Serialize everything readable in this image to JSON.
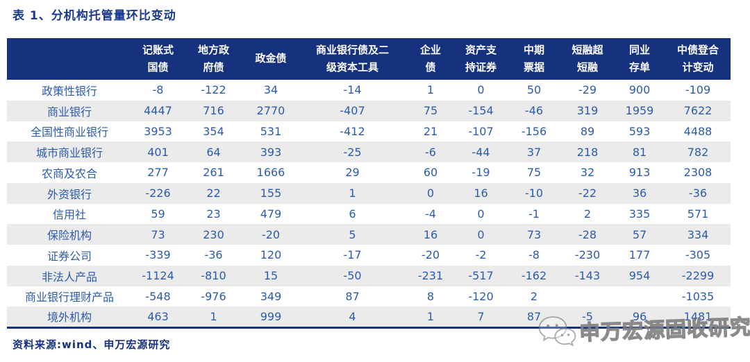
{
  "title": "表 1、分机构托管量环比变动",
  "source": "资料来源:wind、申万宏源研究",
  "watermark": {
    "icon": "wechat-icon",
    "text": "申万宏源固收研究"
  },
  "colors": {
    "header_bg": "#16317D",
    "title_text": "#1A3A8F",
    "cell_text": "#2B5BAD",
    "alt_row_bg": "#EBEBEB",
    "table_bottom_border": "#16317D"
  },
  "table": {
    "columns": [
      {
        "line1": "记账式",
        "line2": "国债"
      },
      {
        "line1": "地方政",
        "line2": "府债"
      },
      {
        "line1": "政金债",
        "line2": ""
      },
      {
        "line1": "商业银行债及二",
        "line2": "级资本工具"
      },
      {
        "line1": "企业",
        "line2": "债"
      },
      {
        "line1": "资产支",
        "line2": "持证券"
      },
      {
        "line1": "中期",
        "line2": "票据"
      },
      {
        "line1": "短融超",
        "line2": "短融"
      },
      {
        "line1": "同业",
        "line2": "存单"
      },
      {
        "line1": "中债登合",
        "line2": "计变动"
      }
    ],
    "rows": [
      {
        "label": "政策性银行",
        "values": [
          "-8",
          "-122",
          "34",
          "-14",
          "1",
          "0",
          "50",
          "-29",
          "900",
          "-109"
        ]
      },
      {
        "label": "商业银行",
        "values": [
          "4447",
          "716",
          "2770",
          "-407",
          "75",
          "-154",
          "-46",
          "319",
          "1959",
          "7622"
        ]
      },
      {
        "label": "全国性商业银行",
        "values": [
          "3953",
          "354",
          "531",
          "-412",
          "21",
          "-107",
          "-156",
          "89",
          "593",
          "4488"
        ]
      },
      {
        "label": "城市商业银行",
        "values": [
          "401",
          "64",
          "393",
          "-25",
          "-6",
          "-44",
          "37",
          "218",
          "81",
          "782"
        ]
      },
      {
        "label": "农商及农合",
        "values": [
          "277",
          "261",
          "1666",
          "29",
          "60",
          "-19",
          "75",
          "32",
          "913",
          "2308"
        ]
      },
      {
        "label": "外资银行",
        "values": [
          "-226",
          "22",
          "155",
          "1",
          "0",
          "16",
          "-10",
          "-22",
          "36",
          "-36"
        ]
      },
      {
        "label": "信用社",
        "values": [
          "59",
          "23",
          "479",
          "6",
          "-4",
          "0",
          "-1",
          "2",
          "335",
          "571"
        ]
      },
      {
        "label": "保险机构",
        "values": [
          "73",
          "230",
          "-20",
          "5",
          "16",
          "0",
          "73",
          "-28",
          "57",
          "334"
        ]
      },
      {
        "label": "证券公司",
        "values": [
          "-339",
          "-36",
          "120",
          "-17",
          "-20",
          "-2",
          "-8",
          "-230",
          "177",
          "-305"
        ]
      },
      {
        "label": "非法人产品",
        "values": [
          "-1124",
          "-810",
          "15",
          "-50",
          "-231",
          "-517",
          "-162",
          "-143",
          "954",
          "-2299"
        ]
      },
      {
        "label": "商业银行理财产品",
        "values": [
          "-548",
          "-976",
          "349",
          "87",
          "8",
          "-120",
          "2",
          "",
          "",
          "-1035"
        ]
      },
      {
        "label": "境外机构",
        "values": [
          "463",
          "1",
          "999",
          "4",
          "1",
          "7",
          "87",
          "-5",
          "96",
          "1481"
        ]
      }
    ]
  }
}
